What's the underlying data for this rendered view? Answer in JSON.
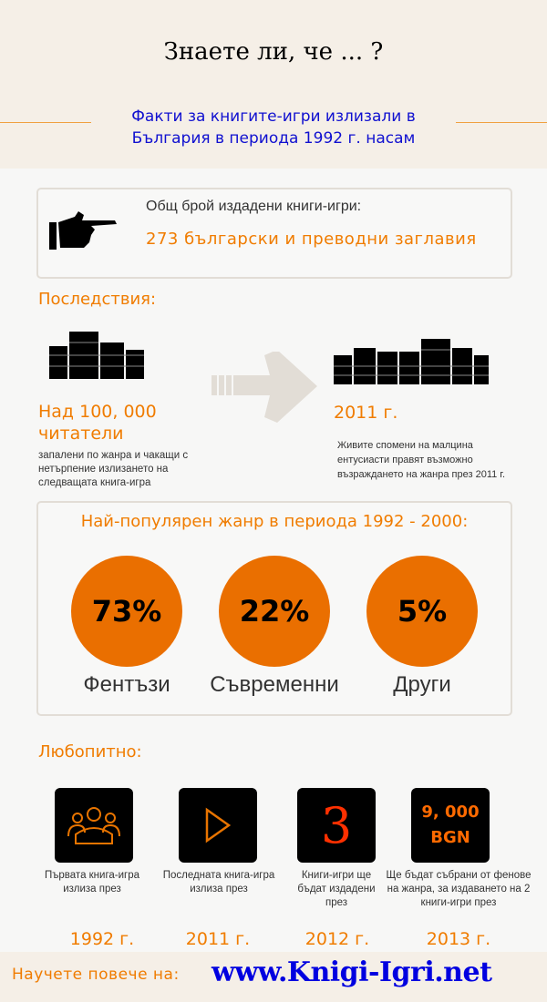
{
  "header": {
    "title": "Знаете ли, че ... ?",
    "subtitle": "Факти за книгите-игри излизали в България в периода 1992 г. насам"
  },
  "total": {
    "label": "Общ брой издадени книги-игри:",
    "value": "273 български и преводни заглавия",
    "icon": "pointing-hand-icon"
  },
  "consequences": {
    "heading": "Последствия:",
    "left_value": "Над 100, 000 читатели",
    "left_text": "запалени по жанра и чакащи с нетърпение излизането на следващата книга-игра",
    "right_value": "2011 г.",
    "right_text": "Живите спомени на малцина ентусиасти правят възможно възраждането на жанра през 2011 г."
  },
  "genres": {
    "heading": "Най-популярен жанр в периода 1992 - 2000:",
    "items": [
      {
        "percent": "73%",
        "label": "Фентъзи",
        "value": 73
      },
      {
        "percent": "22%",
        "label": "Съвременни",
        "value": 22
      },
      {
        "percent": "5%",
        "label": "Други",
        "value": 5
      }
    ]
  },
  "curious": {
    "heading": "Любопитно:",
    "items": [
      {
        "icon": "people-icon",
        "text": "Първата книга-игра излиза през",
        "year": "1992 г."
      },
      {
        "icon": "play-icon",
        "text": "Последната книга-игра излиза през",
        "year": "2011 г."
      },
      {
        "icon_text": "3",
        "text": "Книги-игри ще бъдат издадени през",
        "year": "2012 г."
      },
      {
        "icon_text": "9, 000 BGN",
        "text": "Ще бъдат събрани от фенове на жанра, за издаването на 2 книги-игри през",
        "year": "2013 г."
      }
    ]
  },
  "footer": {
    "label": "Научете повече на:",
    "link": "www.Knigi-Igri.net"
  },
  "colors": {
    "accent": "#f07c00",
    "circle": "#ea6f00",
    "link": "#0000e0"
  }
}
